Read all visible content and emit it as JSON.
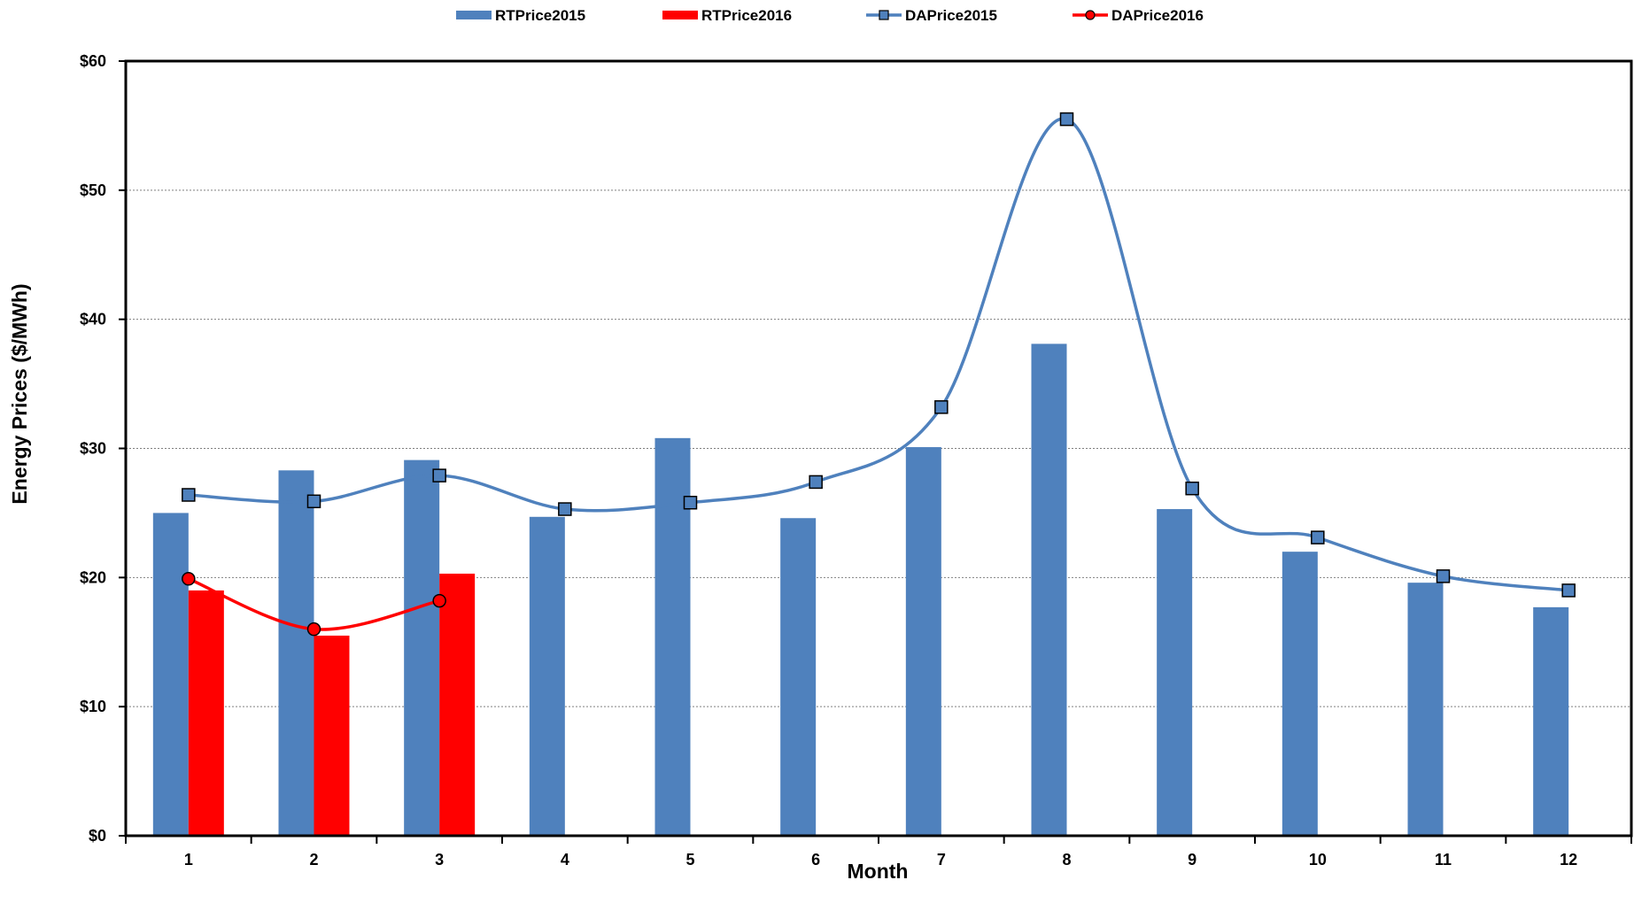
{
  "chart_data": {
    "type": "bar",
    "x_label": "Month",
    "y_label": "Energy Prices ($/MWh)",
    "y_min": 0,
    "y_max": 60,
    "y_tick_labels": [
      "$0",
      "$10",
      "$20",
      "$30",
      "$40",
      "$50",
      "$60"
    ],
    "y_tick_values": [
      0,
      10,
      20,
      30,
      40,
      50,
      60
    ],
    "categories": [
      "1",
      "2",
      "3",
      "4",
      "5",
      "6",
      "7",
      "8",
      "9",
      "10",
      "11",
      "12"
    ],
    "grid": "horizontal dotted",
    "legend_position": "top",
    "bar_series": [
      {
        "name": "RTPrice2015",
        "color": "#4F81BD",
        "values": [
          25.0,
          28.3,
          29.1,
          24.7,
          30.8,
          24.6,
          30.1,
          38.1,
          25.3,
          22.0,
          19.6,
          17.7
        ]
      },
      {
        "name": "RTPrice2016",
        "color": "#FF0000",
        "values": [
          19.0,
          15.5,
          20.3,
          null,
          null,
          null,
          null,
          null,
          null,
          null,
          null,
          null
        ]
      }
    ],
    "line_series": [
      {
        "name": "DAPrice2015",
        "color": "#4F81BD",
        "marker": "square",
        "smooth": true,
        "values": [
          26.4,
          25.9,
          27.9,
          25.3,
          25.8,
          27.4,
          33.2,
          55.5,
          26.9,
          23.1,
          20.1,
          19.0
        ]
      },
      {
        "name": "DAPrice2016",
        "color": "#FF0000",
        "marker": "circle",
        "smooth": true,
        "values": [
          19.9,
          16.0,
          18.2,
          null,
          null,
          null,
          null,
          null,
          null,
          null,
          null,
          null
        ]
      }
    ]
  }
}
